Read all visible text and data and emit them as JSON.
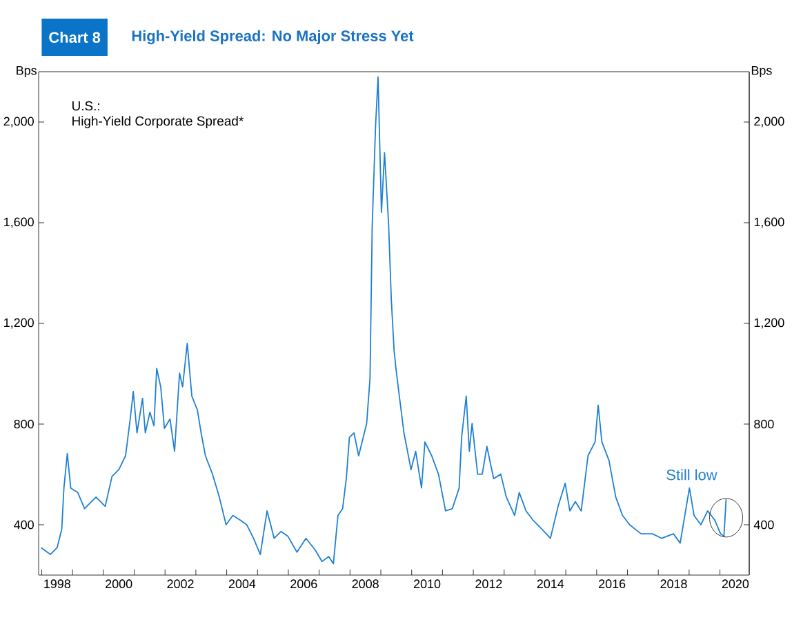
{
  "chart_data": {
    "type": "line",
    "title": "High-Yield Spread: No Major Stress Yet",
    "ylabel": "Bps",
    "y2label": "Bps",
    "annotations": [
      "Chart 8",
      "U.S.:",
      "High-Yield Corporate Spread*",
      {
        "text": "Still low",
        "x": 2020.2,
        "y": 428
      }
    ],
    "x": [
      1997.98,
      1998.28,
      1998.5,
      1998.65,
      1998.72,
      1998.83,
      1998.94,
      1999.17,
      1999.39,
      1999.76,
      2000.06,
      2000.28,
      2000.5,
      2000.72,
      2000.87,
      2000.97,
      2001.09,
      2001.27,
      2001.36,
      2001.51,
      2001.64,
      2001.73,
      2001.86,
      2001.98,
      2002.16,
      2002.31,
      2002.47,
      2002.57,
      2002.72,
      2002.87,
      2003.05,
      2003.17,
      2003.31,
      2003.54,
      2003.76,
      2003.98,
      2004.2,
      2004.43,
      2004.65,
      2004.87,
      2005.09,
      2005.31,
      2005.54,
      2005.76,
      2005.98,
      2006.28,
      2006.57,
      2006.87,
      2007.09,
      2007.31,
      2007.46,
      2007.61,
      2007.76,
      2007.88,
      2007.98,
      2008.13,
      2008.28,
      2008.43,
      2008.54,
      2008.65,
      2008.72,
      2008.83,
      2008.91,
      2009.02,
      2009.12,
      2009.25,
      2009.34,
      2009.43,
      2009.49,
      2009.6,
      2009.75,
      2009.98,
      2010.13,
      2010.32,
      2010.43,
      2010.65,
      2010.87,
      2011.1,
      2011.32,
      2011.54,
      2011.62,
      2011.77,
      2011.87,
      2011.96,
      2012.14,
      2012.29,
      2012.44,
      2012.66,
      2012.89,
      2013.07,
      2013.34,
      2013.49,
      2013.71,
      2013.93,
      2014.23,
      2014.5,
      2014.75,
      2014.98,
      2015.13,
      2015.31,
      2015.5,
      2015.72,
      2015.95,
      2016.05,
      2016.17,
      2016.4,
      2016.62,
      2016.84,
      2017.07,
      2017.44,
      2017.81,
      2018.11,
      2018.49,
      2018.71,
      2019.01,
      2019.16,
      2019.38,
      2019.6,
      2019.83,
      2020.02,
      2020.13,
      2020.2
    ],
    "series": [
      {
        "color": "#1f80d2",
        "values": [
          309,
          282,
          309,
          382,
          546,
          683,
          546,
          528,
          464,
          510,
          473,
          592,
          619,
          674,
          820,
          929,
          765,
          902,
          765,
          847,
          793,
          1021,
          948,
          783,
          820,
          692,
          1002,
          948,
          1121,
          911,
          856,
          765,
          674,
          601,
          510,
          400,
          437,
          419,
          400,
          346,
          282,
          455,
          346,
          373,
          355,
          291,
          346,
          300,
          254,
          273,
          245,
          437,
          464,
          583,
          747,
          765,
          674,
          747,
          802,
          984,
          1586,
          1987,
          2179,
          1641,
          1878,
          1600,
          1294,
          1093,
          1021,
          911,
          765,
          619,
          692,
          546,
          729,
          674,
          601,
          455,
          464,
          546,
          747,
          911,
          692,
          802,
          601,
          601,
          711,
          583,
          601,
          510,
          437,
          528,
          455,
          419,
          382,
          346,
          473,
          565,
          455,
          492,
          455,
          674,
          729,
          875,
          729,
          656,
          510,
          437,
          400,
          364,
          364,
          346,
          364,
          327,
          546,
          437,
          400,
          455,
          419,
          364,
          355,
          501
        ]
      }
    ],
    "xlim": [
      1997.9,
      2020.95
    ],
    "xticks": [
      {
        "value": 1998,
        "label": null
      },
      {
        "value": 1998.5,
        "label": "1998"
      },
      {
        "value": 1999,
        "label": null
      },
      {
        "value": 2000,
        "label": null
      },
      {
        "value": 2000.5,
        "label": "2000"
      },
      {
        "value": 2001,
        "label": null
      },
      {
        "value": 2002,
        "label": null
      },
      {
        "value": 2002.5,
        "label": "2002"
      },
      {
        "value": 2003,
        "label": null
      },
      {
        "value": 2004,
        "label": null
      },
      {
        "value": 2004.5,
        "label": "2004"
      },
      {
        "value": 2005,
        "label": null
      },
      {
        "value": 2006,
        "label": null
      },
      {
        "value": 2006.5,
        "label": "2006"
      },
      {
        "value": 2007,
        "label": null
      },
      {
        "value": 2008,
        "label": null
      },
      {
        "value": 2008.5,
        "label": "2008"
      },
      {
        "value": 2009,
        "label": null
      },
      {
        "value": 2010,
        "label": null
      },
      {
        "value": 2010.5,
        "label": "2010"
      },
      {
        "value": 2011,
        "label": null
      },
      {
        "value": 2012,
        "label": null
      },
      {
        "value": 2012.5,
        "label": "2012"
      },
      {
        "value": 2013,
        "label": null
      },
      {
        "value": 2014,
        "label": null
      },
      {
        "value": 2014.5,
        "label": "2014"
      },
      {
        "value": 2015,
        "label": null
      },
      {
        "value": 2016,
        "label": null
      },
      {
        "value": 2016.5,
        "label": "2016"
      },
      {
        "value": 2017,
        "label": null
      },
      {
        "value": 2018,
        "label": null
      },
      {
        "value": 2018.5,
        "label": "2018"
      },
      {
        "value": 2019,
        "label": null
      },
      {
        "value": 2020,
        "label": null
      },
      {
        "value": 2020.5,
        "label": "2020"
      }
    ],
    "ylim": [
      200,
      2200
    ],
    "yticks": [
      {
        "value": 400,
        "label": "400"
      },
      {
        "value": 800,
        "label": "800"
      },
      {
        "value": 1200,
        "label": "1,200"
      },
      {
        "value": 1600,
        "label": "1,600"
      },
      {
        "value": 2000,
        "label": "2,000"
      }
    ],
    "y2lim": [
      200,
      2200
    ],
    "y2ticks": [
      {
        "value": 400,
        "label": "400"
      },
      {
        "value": 800,
        "label": "800"
      },
      {
        "value": 1200,
        "label": "1,200"
      },
      {
        "value": 1600,
        "label": "1,600"
      },
      {
        "value": 2000,
        "label": "2,000"
      }
    ],
    "grid": false,
    "marker": "none",
    "line_style": "solid"
  }
}
